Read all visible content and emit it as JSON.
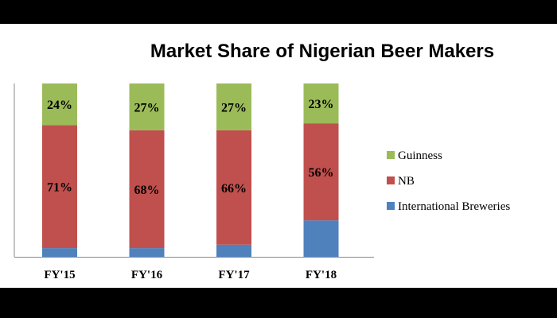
{
  "chart_data": {
    "type": "bar",
    "stacked": true,
    "title": "Market Share of Nigerian Beer Makers",
    "categories": [
      "FY'15",
      "FY'16",
      "FY'17",
      "FY'18"
    ],
    "series": [
      {
        "name": "International Breweries",
        "values": [
          5,
          5,
          7,
          21
        ],
        "color": "#4f81bd",
        "labels": [
          "",
          "",
          "",
          ""
        ]
      },
      {
        "name": "NB",
        "values": [
          71,
          68,
          66,
          56
        ],
        "color": "#c0504d",
        "labels": [
          "71%",
          "68%",
          "66%",
          "56%"
        ]
      },
      {
        "name": "Guinness",
        "values": [
          24,
          27,
          27,
          23
        ],
        "color": "#9bbb59",
        "labels": [
          "24%",
          "27%",
          "27%",
          "23%"
        ]
      }
    ],
    "legend_order": [
      "Guinness",
      "NB",
      "International Breweries"
    ],
    "ylim": [
      0,
      100
    ],
    "grid": false,
    "legend_position": "right"
  }
}
